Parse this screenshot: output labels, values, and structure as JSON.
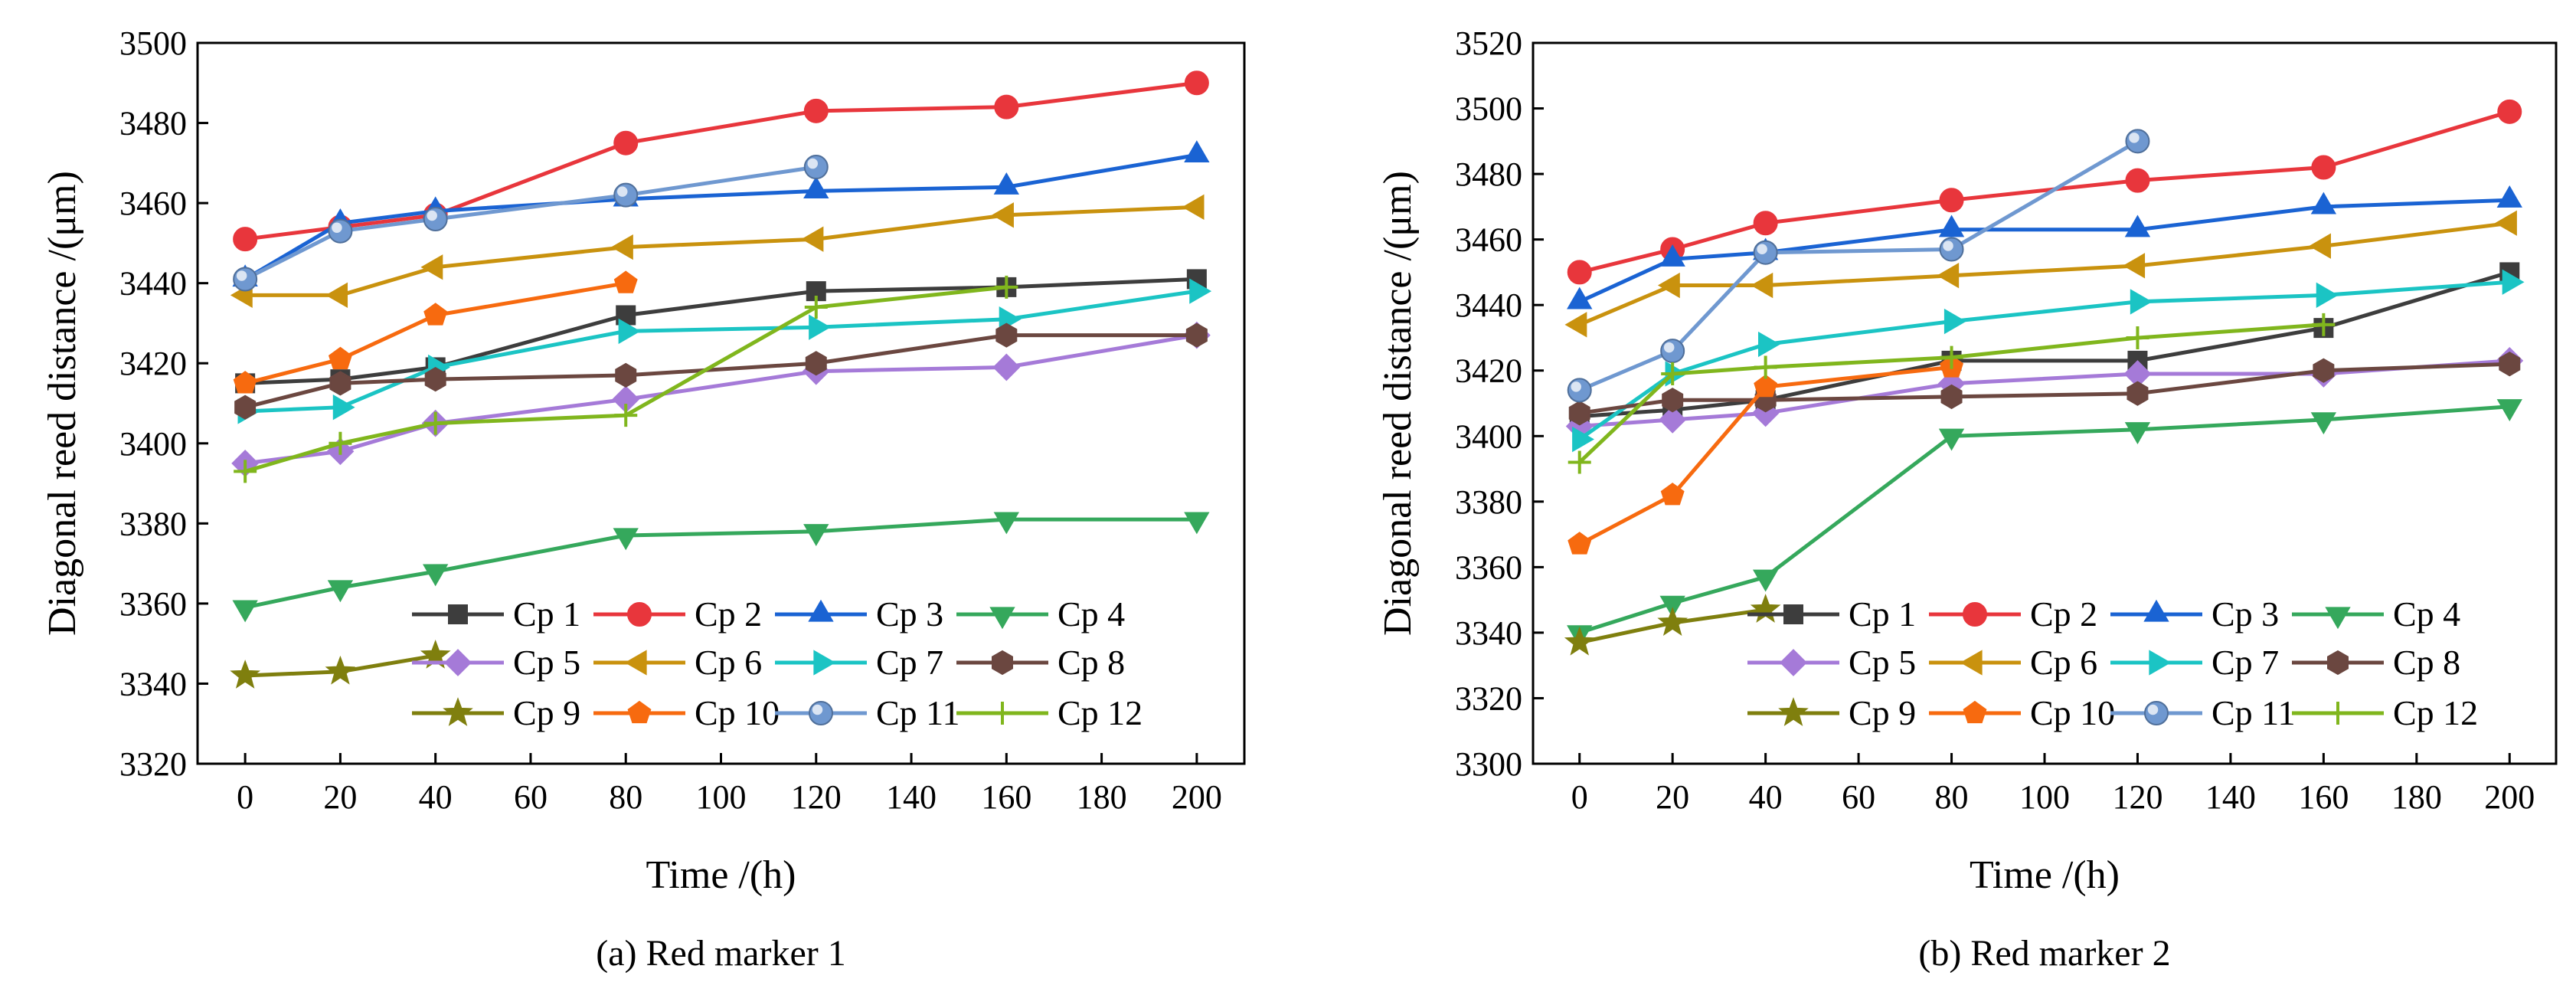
{
  "chart_data": [
    {
      "type": "line",
      "caption": "(a) Red marker 1",
      "xlabel": "Time /(h)",
      "ylabel": "Diagonal reed distance /(μm)",
      "xlim": [
        -10,
        210
      ],
      "ylim": [
        3320,
        3500
      ],
      "xticks": [
        0,
        20,
        40,
        60,
        80,
        100,
        120,
        140,
        160,
        180,
        200
      ],
      "yticks": [
        3320,
        3340,
        3360,
        3380,
        3400,
        3420,
        3440,
        3460,
        3480,
        3500
      ],
      "legend": "bottom-right, 4 columns",
      "series": [
        {
          "name": "Cp 1",
          "color": "#3d3d3d",
          "marker": "square",
          "x": [
            0,
            20,
            40,
            80,
            120,
            160,
            200
          ],
          "y": [
            3415,
            3416,
            3419,
            3432,
            3438,
            3439,
            3441
          ]
        },
        {
          "name": "Cp 2",
          "color": "#e8363c",
          "marker": "circle",
          "x": [
            0,
            20,
            40,
            80,
            120,
            160,
            200
          ],
          "y": [
            3451,
            3454,
            3457,
            3475,
            3483,
            3484,
            3490
          ]
        },
        {
          "name": "Cp 3",
          "color": "#1a63d3",
          "marker": "triangle-up",
          "x": [
            0,
            20,
            40,
            80,
            120,
            160,
            200
          ],
          "y": [
            3441,
            3455,
            3458,
            3461,
            3463,
            3464,
            3472
          ]
        },
        {
          "name": "Cp 4",
          "color": "#35a85c",
          "marker": "triangle-down",
          "x": [
            0,
            20,
            40,
            80,
            120,
            160,
            200
          ],
          "y": [
            3359,
            3364,
            3368,
            3377,
            3378,
            3381,
            3381
          ]
        },
        {
          "name": "Cp 5",
          "color": "#a57ad8",
          "marker": "diamond",
          "x": [
            0,
            20,
            40,
            80,
            120,
            160,
            200
          ],
          "y": [
            3395,
            3398,
            3405,
            3411,
            3418,
            3419,
            3427
          ]
        },
        {
          "name": "Cp 6",
          "color": "#c9920e",
          "marker": "triangle-left",
          "x": [
            0,
            20,
            40,
            80,
            120,
            160,
            200
          ],
          "y": [
            3437,
            3437,
            3444,
            3449,
            3451,
            3457,
            3459
          ]
        },
        {
          "name": "Cp 7",
          "color": "#1bc4c4",
          "marker": "triangle-right",
          "x": [
            0,
            20,
            40,
            80,
            120,
            160,
            200
          ],
          "y": [
            3408,
            3409,
            3419,
            3428,
            3429,
            3431,
            3438
          ]
        },
        {
          "name": "Cp 8",
          "color": "#6b4740",
          "marker": "hexagon",
          "x": [
            0,
            20,
            40,
            80,
            120,
            160,
            200
          ],
          "y": [
            3409,
            3415,
            3416,
            3417,
            3420,
            3427,
            3427
          ]
        },
        {
          "name": "Cp 9",
          "color": "#7f7f0e",
          "marker": "star",
          "x": [
            0,
            20,
            40
          ],
          "y": [
            3342,
            3343,
            3347
          ]
        },
        {
          "name": "Cp 10",
          "color": "#f76a0f",
          "marker": "pentagon",
          "x": [
            0,
            20,
            40,
            80
          ],
          "y": [
            3415,
            3421,
            3432,
            3440
          ]
        },
        {
          "name": "Cp 11",
          "color": "#6f98d0",
          "marker": "sphere",
          "x": [
            0,
            20,
            40,
            80,
            120
          ],
          "y": [
            3441,
            3453,
            3456,
            3462,
            3469
          ]
        },
        {
          "name": "Cp 12",
          "color": "#80b61d",
          "marker": "plus",
          "x": [
            0,
            20,
            40,
            80,
            120,
            160
          ],
          "y": [
            3393,
            3400,
            3405,
            3407,
            3434,
            3439
          ]
        }
      ]
    },
    {
      "type": "line",
      "caption": "(b) Red marker 2",
      "xlabel": "Time /(h)",
      "ylabel": "Diagonal reed distance /(μm)",
      "xlim": [
        -10,
        210
      ],
      "ylim": [
        3300,
        3520
      ],
      "xticks": [
        0,
        20,
        40,
        60,
        80,
        100,
        120,
        140,
        160,
        180,
        200
      ],
      "yticks": [
        3300,
        3320,
        3340,
        3360,
        3380,
        3400,
        3420,
        3440,
        3460,
        3480,
        3500,
        3520
      ],
      "legend": "bottom-right, 4 columns",
      "series": [
        {
          "name": "Cp 1",
          "color": "#3d3d3d",
          "marker": "square",
          "x": [
            0,
            20,
            40,
            80,
            120,
            160,
            200
          ],
          "y": [
            3406,
            3408,
            3411,
            3423,
            3423,
            3433,
            3450
          ]
        },
        {
          "name": "Cp 2",
          "color": "#e8363c",
          "marker": "circle",
          "x": [
            0,
            20,
            40,
            80,
            120,
            160,
            200
          ],
          "y": [
            3450,
            3457,
            3465,
            3472,
            3478,
            3482,
            3499
          ]
        },
        {
          "name": "Cp 3",
          "color": "#1a63d3",
          "marker": "triangle-up",
          "x": [
            0,
            20,
            40,
            80,
            120,
            160,
            200
          ],
          "y": [
            3441,
            3454,
            3456,
            3463,
            3463,
            3470,
            3472
          ]
        },
        {
          "name": "Cp 4",
          "color": "#35a85c",
          "marker": "triangle-down",
          "x": [
            0,
            20,
            40,
            80,
            120,
            160,
            200
          ],
          "y": [
            3340,
            3349,
            3357,
            3400,
            3402,
            3405,
            3409
          ]
        },
        {
          "name": "Cp 5",
          "color": "#a57ad8",
          "marker": "diamond",
          "x": [
            0,
            20,
            40,
            80,
            120,
            160,
            200
          ],
          "y": [
            3403,
            3405,
            3407,
            3416,
            3419,
            3419,
            3423
          ]
        },
        {
          "name": "Cp 6",
          "color": "#c9920e",
          "marker": "triangle-left",
          "x": [
            0,
            20,
            40,
            80,
            120,
            160,
            200
          ],
          "y": [
            3434,
            3446,
            3446,
            3449,
            3452,
            3458,
            3465
          ]
        },
        {
          "name": "Cp 7",
          "color": "#1bc4c4",
          "marker": "triangle-right",
          "x": [
            0,
            20,
            40,
            80,
            120,
            160,
            200
          ],
          "y": [
            3399,
            3419,
            3428,
            3435,
            3441,
            3443,
            3447
          ]
        },
        {
          "name": "Cp 8",
          "color": "#6b4740",
          "marker": "hexagon",
          "x": [
            0,
            20,
            40,
            80,
            120,
            160,
            200
          ],
          "y": [
            3407,
            3411,
            3411,
            3412,
            3413,
            3420,
            3422
          ]
        },
        {
          "name": "Cp 9",
          "color": "#7f7f0e",
          "marker": "star",
          "x": [
            0,
            20,
            40
          ],
          "y": [
            3337,
            3343,
            3347
          ]
        },
        {
          "name": "Cp 10",
          "color": "#f76a0f",
          "marker": "pentagon",
          "x": [
            0,
            20,
            40,
            80
          ],
          "y": [
            3367,
            3382,
            3415,
            3421
          ]
        },
        {
          "name": "Cp 11",
          "color": "#6f98d0",
          "marker": "sphere",
          "x": [
            0,
            20,
            40,
            80,
            120
          ],
          "y": [
            3414,
            3426,
            3456,
            3457,
            3490
          ]
        },
        {
          "name": "Cp 12",
          "color": "#80b61d",
          "marker": "plus",
          "x": [
            0,
            20,
            40,
            80,
            120,
            160
          ],
          "y": [
            3392,
            3419,
            3421,
            3424,
            3430,
            3434
          ]
        }
      ]
    }
  ]
}
